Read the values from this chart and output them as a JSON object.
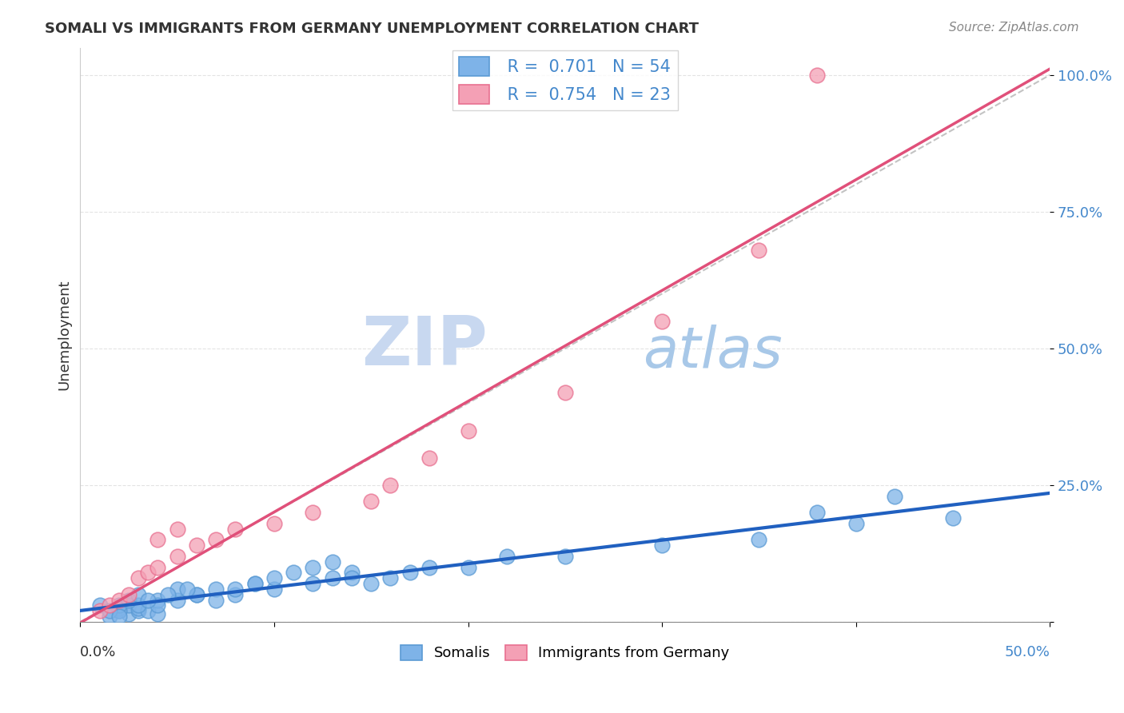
{
  "title": "SOMALI VS IMMIGRANTS FROM GERMANY UNEMPLOYMENT CORRELATION CHART",
  "source": "Source: ZipAtlas.com",
  "ylabel": "Unemployment",
  "y_ticks": [
    0.0,
    0.25,
    0.5,
    0.75,
    1.0
  ],
  "y_tick_labels": [
    "",
    "25.0%",
    "50.0%",
    "75.0%",
    "100.0%"
  ],
  "x_ticks": [
    0.0,
    0.1,
    0.2,
    0.3,
    0.4,
    0.5
  ],
  "xmin": 0.0,
  "xmax": 0.5,
  "ymin": 0.0,
  "ymax": 1.05,
  "somali_color": "#7eb3e8",
  "germany_color": "#f4a0b5",
  "somali_edge": "#5a9ad4",
  "germany_edge": "#e87090",
  "trend_blue": "#2060c0",
  "trend_pink": "#e0507a",
  "ref_line_color": "#aaaaaa",
  "R_somali": 0.701,
  "N_somali": 54,
  "R_germany": 0.754,
  "N_germany": 23,
  "somali_x": [
    0.02,
    0.025,
    0.03,
    0.015,
    0.01,
    0.02,
    0.025,
    0.03,
    0.035,
    0.04,
    0.05,
    0.06,
    0.07,
    0.08,
    0.09,
    0.1,
    0.12,
    0.13,
    0.14,
    0.15,
    0.16,
    0.17,
    0.18,
    0.2,
    0.22,
    0.25,
    0.3,
    0.35,
    0.38,
    0.4,
    0.03,
    0.04,
    0.05,
    0.06,
    0.07,
    0.08,
    0.09,
    0.1,
    0.11,
    0.12,
    0.13,
    0.14,
    0.02,
    0.02,
    0.025,
    0.03,
    0.04,
    0.015,
    0.02,
    0.035,
    0.045,
    0.055,
    0.45,
    0.42
  ],
  "somali_y": [
    0.02,
    0.015,
    0.02,
    0.01,
    0.03,
    0.025,
    0.03,
    0.025,
    0.02,
    0.015,
    0.04,
    0.05,
    0.06,
    0.05,
    0.07,
    0.06,
    0.07,
    0.08,
    0.09,
    0.07,
    0.08,
    0.09,
    0.1,
    0.1,
    0.12,
    0.12,
    0.14,
    0.15,
    0.2,
    0.18,
    0.03,
    0.04,
    0.06,
    0.05,
    0.04,
    0.06,
    0.07,
    0.08,
    0.09,
    0.1,
    0.11,
    0.08,
    0.02,
    0.03,
    0.04,
    0.05,
    0.03,
    0.02,
    0.01,
    0.04,
    0.05,
    0.06,
    0.19,
    0.23
  ],
  "germany_x": [
    0.01,
    0.015,
    0.02,
    0.025,
    0.03,
    0.035,
    0.04,
    0.05,
    0.06,
    0.07,
    0.08,
    0.1,
    0.12,
    0.15,
    0.16,
    0.18,
    0.2,
    0.25,
    0.3,
    0.35,
    0.04,
    0.05,
    0.38
  ],
  "germany_y": [
    0.02,
    0.03,
    0.04,
    0.05,
    0.08,
    0.09,
    0.1,
    0.12,
    0.14,
    0.15,
    0.17,
    0.18,
    0.2,
    0.22,
    0.25,
    0.3,
    0.35,
    0.42,
    0.55,
    0.68,
    0.15,
    0.17,
    1.0
  ],
  "watermark_zip": "ZIP",
  "watermark_atlas": "atlas",
  "watermark_color_zip": "#c8d8f0",
  "watermark_color_atlas": "#a8c8e8",
  "legend_blue_label": " R =  0.701   N = 54",
  "legend_pink_label": " R =  0.754   N = 23",
  "background_color": "#ffffff",
  "grid_color": "#dddddd",
  "label_color": "#4488cc"
}
